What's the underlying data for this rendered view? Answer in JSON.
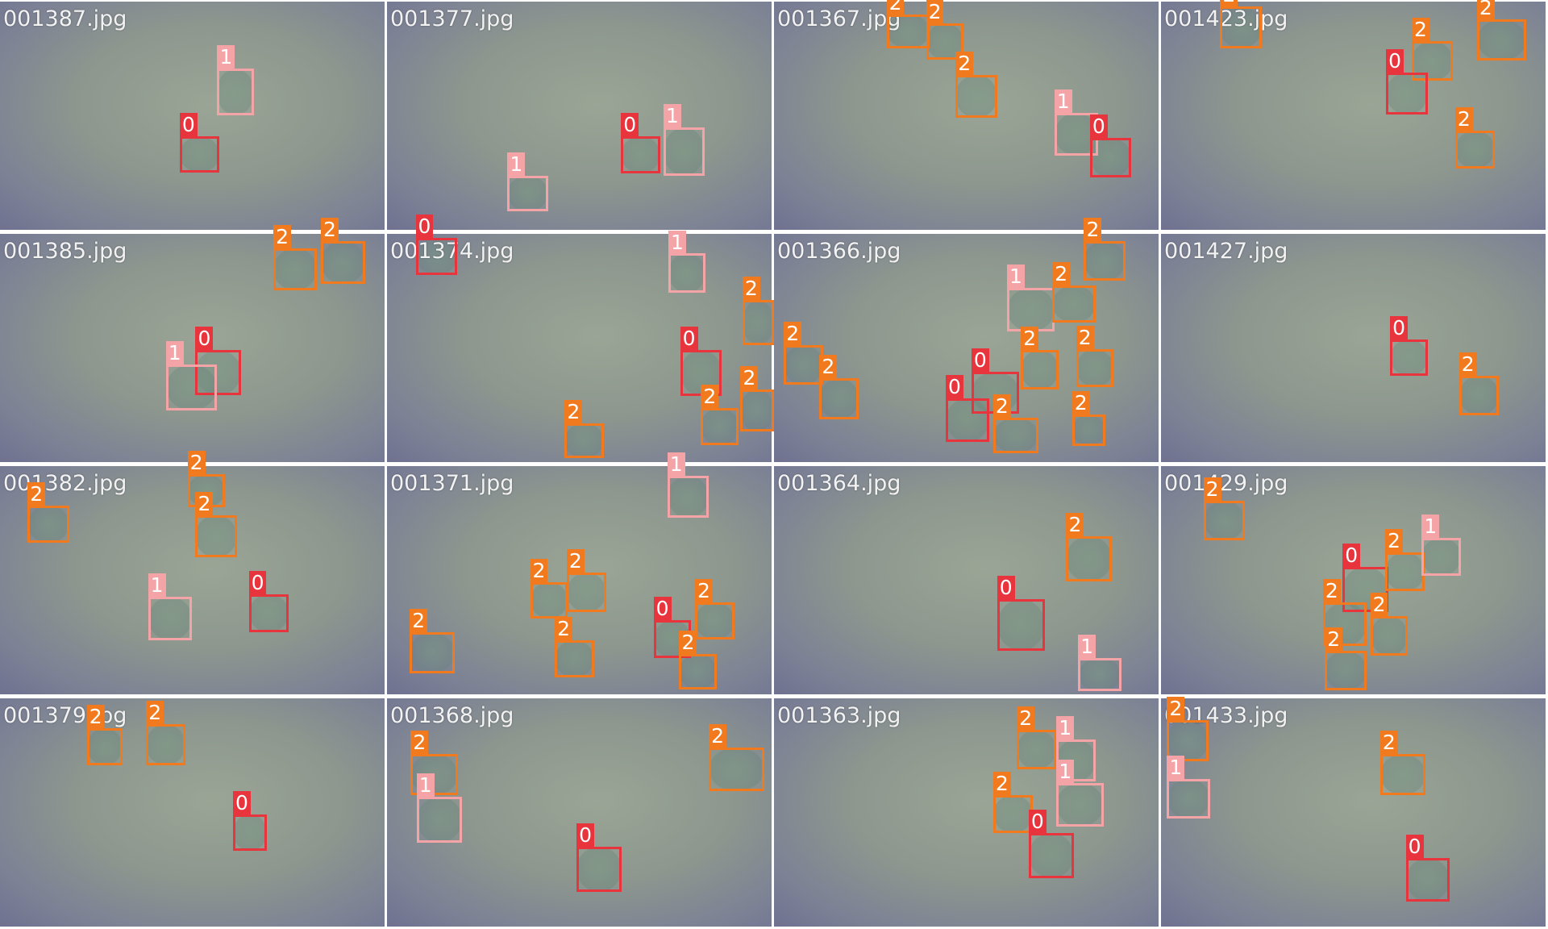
{
  "class_colors": {
    "0": "#e8343c",
    "1": "#f4a3a6",
    "2": "#f27a1e"
  },
  "tiles": [
    {
      "name": "001387.jpg",
      "boxes": [
        "1",
        "0"
      ]
    },
    {
      "name": "001377.jpg",
      "boxes": [
        "0",
        "1",
        "1"
      ]
    },
    {
      "name": "001367.jpg",
      "boxes": [
        "2",
        "2",
        "2",
        "1",
        "0"
      ]
    },
    {
      "name": "001423.jpg",
      "boxes": [
        "2",
        "2",
        "2",
        "0",
        "2"
      ]
    },
    {
      "name": "001385.jpg",
      "boxes": [
        "2",
        "2",
        "0",
        "1"
      ]
    },
    {
      "name": "001374.jpg",
      "boxes": [
        "0",
        "1",
        "2",
        "0",
        "2",
        "2",
        "2"
      ]
    },
    {
      "name": "001366.jpg",
      "boxes": [
        "2",
        "1",
        "2",
        "2",
        "2",
        "2",
        "2",
        "0",
        "0",
        "2",
        "2"
      ]
    },
    {
      "name": "001427.jpg",
      "boxes": [
        "0",
        "2"
      ]
    },
    {
      "name": "001382.jpg",
      "boxes": [
        "2",
        "2",
        "2",
        "1",
        "0"
      ]
    },
    {
      "name": "001371.jpg",
      "boxes": [
        "1",
        "2",
        "2",
        "2",
        "2",
        "0",
        "2",
        "2"
      ]
    },
    {
      "name": "001364.jpg",
      "boxes": [
        "2",
        "0",
        "1"
      ]
    },
    {
      "name": "001429.jpg",
      "boxes": [
        "2",
        "0",
        "2",
        "1",
        "2",
        "2",
        "2"
      ]
    },
    {
      "name": "001379.jpg",
      "boxes": [
        "2",
        "2",
        "0"
      ]
    },
    {
      "name": "001368.jpg",
      "boxes": [
        "2",
        "1",
        "2",
        "0"
      ]
    },
    {
      "name": "001363.jpg",
      "boxes": [
        "2",
        "1",
        "2",
        "1",
        "0"
      ]
    },
    {
      "name": "001433.jpg",
      "boxes": [
        "2",
        "1",
        "2",
        "0"
      ]
    }
  ]
}
